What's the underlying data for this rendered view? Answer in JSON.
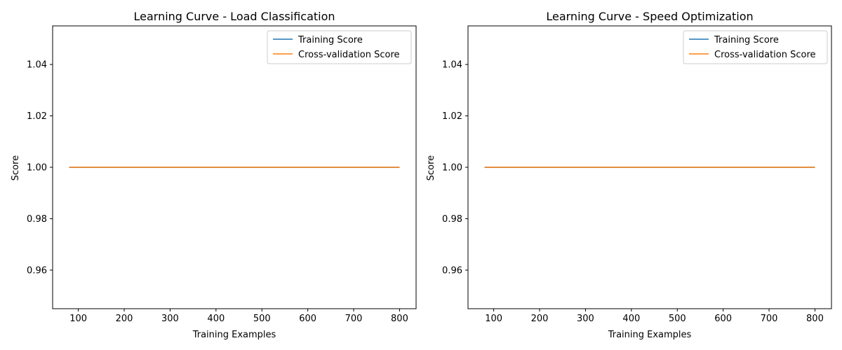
{
  "colors": {
    "series": [
      "#1f77b4",
      "#ff7f0e"
    ],
    "axes": "#000000",
    "background": "#ffffff"
  },
  "chart_data": [
    {
      "type": "line",
      "title": "Learning Curve - Load Classification",
      "xlabel": "Training Examples",
      "ylabel": "Score",
      "xlim": [
        44,
        836
      ],
      "ylim": [
        0.945,
        1.055
      ],
      "xticks": [
        100,
        200,
        300,
        400,
        500,
        600,
        700,
        800
      ],
      "yticks": [
        0.96,
        0.98,
        1.0,
        1.02,
        1.04
      ],
      "ytick_labels": [
        "0.96",
        "0.98",
        "1.00",
        "1.02",
        "1.04"
      ],
      "grid": false,
      "legend": "upper right",
      "x": [
        80,
        160,
        240,
        320,
        400,
        480,
        560,
        640,
        720,
        800
      ],
      "series": [
        {
          "name": "Training Score",
          "values": [
            1,
            1,
            1,
            1,
            1,
            1,
            1,
            1,
            1,
            1
          ]
        },
        {
          "name": "Cross-validation Score",
          "values": [
            1,
            1,
            1,
            1,
            1,
            1,
            1,
            1,
            1,
            1
          ]
        }
      ]
    },
    {
      "type": "line",
      "title": "Learning Curve - Speed Optimization",
      "xlabel": "Training Examples",
      "ylabel": "Score",
      "xlim": [
        44,
        836
      ],
      "ylim": [
        0.945,
        1.055
      ],
      "xticks": [
        100,
        200,
        300,
        400,
        500,
        600,
        700,
        800
      ],
      "yticks": [
        0.96,
        0.98,
        1.0,
        1.02,
        1.04
      ],
      "ytick_labels": [
        "0.96",
        "0.98",
        "1.00",
        "1.02",
        "1.04"
      ],
      "grid": false,
      "legend": "upper right",
      "x": [
        80,
        160,
        240,
        320,
        400,
        480,
        560,
        640,
        720,
        800
      ],
      "series": [
        {
          "name": "Training Score",
          "values": [
            1,
            1,
            1,
            1,
            1,
            1,
            1,
            1,
            1,
            1
          ]
        },
        {
          "name": "Cross-validation Score",
          "values": [
            1,
            1,
            1,
            1,
            1,
            1,
            1,
            1,
            1,
            1
          ]
        }
      ]
    }
  ]
}
